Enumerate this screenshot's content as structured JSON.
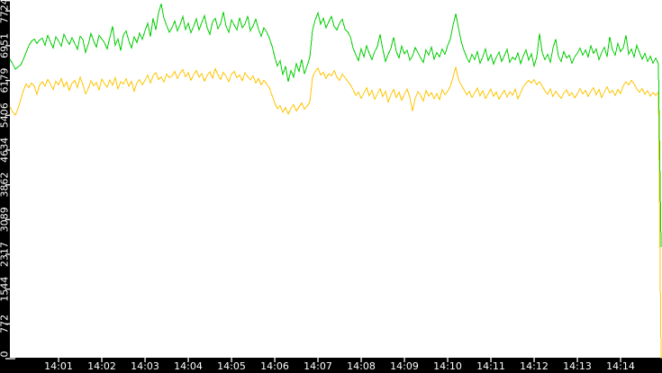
{
  "chart_data": {
    "type": "line",
    "title": "",
    "grid": false,
    "legend": "none",
    "plot_background": "#ffffff",
    "axis_bar_color": "#000000",
    "tick_text_color": "#ffffff",
    "axes": {
      "x": {
        "unit": "time",
        "tick_labels": [
          "14:01",
          "14:02",
          "14:03",
          "14:04",
          "14:05",
          "14:06",
          "14:07",
          "14:08",
          "14:09",
          "14:10",
          "14:11",
          "14:12",
          "14:13",
          "14:14"
        ],
        "visible_range": [
          "13:59:52",
          "14:14:59"
        ]
      },
      "y": {
        "tick_values": [
          0,
          772,
          1544,
          2317,
          3089,
          3862,
          4634,
          5406,
          6179,
          6951,
          7724
        ],
        "tick_labels": [
          "0",
          "772",
          "1544",
          "2317",
          "3089",
          "3862",
          "4634",
          "5406",
          "6179",
          "6951",
          "7724"
        ],
        "ylim": [
          0,
          7966
        ]
      }
    },
    "sampling": {
      "start_time": "13:59:52",
      "interval_seconds": 3.75
    },
    "series": [
      {
        "name": "green",
        "color": "#00CE00",
        "values": [
          6650,
          6550,
          6430,
          6480,
          6520,
          6650,
          6800,
          6950,
          7050,
          7100,
          7000,
          7080,
          7120,
          6960,
          7180,
          7040,
          6900,
          7150,
          7060,
          6940,
          7200,
          7080,
          6980,
          7130,
          7000,
          6870,
          7160,
          7090,
          6800,
          6980,
          7220,
          7060,
          6920,
          7180,
          7100,
          7020,
          6880,
          7140,
          7380,
          6960,
          7100,
          6840,
          7190,
          7280,
          7060,
          6900,
          7150,
          7020,
          7230,
          7090,
          7280,
          7450,
          7150,
          7560,
          7300,
          7680,
          7880,
          7560,
          7400,
          7250,
          7350,
          7500,
          7280,
          7420,
          7600,
          7310,
          7450,
          7240,
          7380,
          7550,
          7300,
          7460,
          7620,
          7350,
          7200,
          7480,
          7560,
          7330,
          7440,
          7700,
          7380,
          7250,
          7520,
          7410,
          7300,
          7570,
          7350,
          7430,
          7610,
          7280,
          7390,
          7540,
          7320,
          7160,
          7350,
          7260,
          7120,
          6950,
          6700,
          6500,
          6620,
          6300,
          6500,
          6150,
          6400,
          6250,
          6550,
          6380,
          6650,
          6320,
          6500,
          6700,
          7300,
          7520,
          7680,
          7430,
          7560,
          7350,
          7480,
          7600,
          7380,
          7300,
          7450,
          7540,
          7320,
          7260,
          7150,
          6900,
          6750,
          6620,
          6880,
          6700,
          6950,
          6780,
          6640,
          6820,
          6930,
          7200,
          6870,
          6600,
          6760,
          6890,
          7140,
          6820,
          6680,
          6940,
          6770,
          6850,
          6630,
          6720,
          6910,
          6800,
          6680,
          6580,
          6860,
          6740,
          6920,
          6650,
          6800,
          6700,
          6880,
          6760,
          6950,
          7100,
          7400,
          7660,
          7350,
          7050,
          6850,
          6700,
          6580,
          6760,
          6640,
          6820,
          6560,
          6700,
          6880,
          6620,
          6750,
          6540,
          6690,
          6810,
          6600,
          6730,
          6870,
          6580,
          6700,
          6640,
          6790,
          6550,
          6720,
          6860,
          6630,
          6770,
          6500,
          6700,
          7220,
          6800,
          6640,
          6760,
          6580,
          6900,
          7100,
          6720,
          6600,
          6820,
          6680,
          6740,
          6560,
          6700,
          6780,
          6900,
          6740,
          6860,
          6700,
          6950,
          6780,
          6880,
          6640,
          6800,
          6920,
          6700,
          7150,
          6860,
          6740,
          7000,
          6820,
          6900,
          7180,
          6760,
          6880,
          6700,
          6960,
          6800,
          6650,
          6780,
          6600,
          6720,
          6560,
          6680,
          6550,
          2480
        ]
      },
      {
        "name": "yellow",
        "color": "#FFC400",
        "values": [
          5600,
          5480,
          5410,
          5550,
          5750,
          5950,
          6100,
          6020,
          6120,
          6060,
          5870,
          6080,
          6150,
          6050,
          6200,
          6100,
          5980,
          6160,
          6080,
          6220,
          6040,
          6140,
          5960,
          6120,
          6180,
          6020,
          6250,
          6090,
          5880,
          6000,
          6170,
          6060,
          6130,
          5970,
          6210,
          6110,
          6030,
          6190,
          6070,
          6240,
          5990,
          6150,
          6100,
          6220,
          6050,
          6160,
          5940,
          6120,
          6200,
          6080,
          6180,
          6300,
          6120,
          6280,
          6350,
          6200,
          6260,
          6140,
          6320,
          6240,
          6280,
          6380,
          6220,
          6340,
          6420,
          6260,
          6350,
          6180,
          6310,
          6400,
          6250,
          6330,
          6160,
          6290,
          6370,
          6230,
          6440,
          6300,
          6200,
          6360,
          6270,
          6150,
          6320,
          6380,
          6240,
          6300,
          6170,
          6350,
          6260,
          6190,
          6280,
          6120,
          6220,
          6080,
          6180,
          6100,
          6020,
          5850,
          5680,
          5550,
          5620,
          5470,
          5580,
          5430,
          5560,
          5640,
          5500,
          5590,
          5680,
          5540,
          5610,
          5700,
          6250,
          6380,
          6450,
          6300,
          6360,
          6220,
          6330,
          6280,
          6400,
          6250,
          6180,
          6320,
          6240,
          6160,
          6080,
          5980,
          5850,
          5920,
          5780,
          5900,
          6020,
          5840,
          5960,
          5760,
          5880,
          6000,
          5820,
          5940,
          5700,
          5860,
          5980,
          5800,
          5920,
          5740,
          5870,
          5990,
          5810,
          5500,
          5780,
          5930,
          5850,
          5720,
          5960,
          5830,
          5910,
          5770,
          5890,
          5750,
          5980,
          5860,
          5940,
          6050,
          6250,
          6480,
          6200,
          6080,
          5980,
          5860,
          5940,
          5800,
          5900,
          6010,
          5840,
          5950,
          5780,
          5880,
          5990,
          5830,
          5920,
          5760,
          5870,
          5960,
          5810,
          5930,
          5850,
          5990,
          5770,
          5900,
          6040,
          6120,
          6180,
          6120,
          6200,
          6080,
          6150,
          6060,
          5950,
          5870,
          5990,
          5820,
          5940,
          5860,
          5780,
          5900,
          5970,
          5840,
          5910,
          5790,
          5880,
          6000,
          5880,
          5960,
          5820,
          5940,
          6020,
          5860,
          5980,
          5800,
          5920,
          6040,
          5900,
          5960,
          5840,
          5980,
          5890,
          6060,
          6150,
          6080,
          6180,
          6100,
          5990,
          5920,
          6000,
          5870,
          5950,
          5830,
          5910,
          5850,
          5920,
          0
        ]
      }
    ]
  }
}
